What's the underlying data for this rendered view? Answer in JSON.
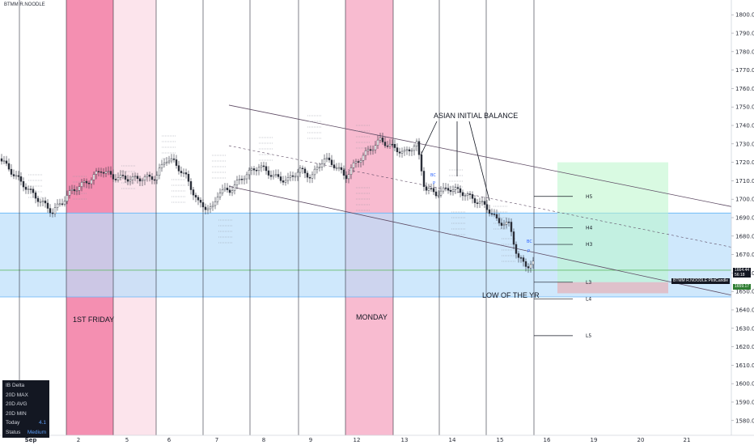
{
  "brand": "BTMM R.NOODLE",
  "chart_data": {
    "type": "candlestick",
    "y_axis": {
      "range": [
        1572,
        1808
      ],
      "ticks": [
        1800,
        1790,
        1780,
        1770,
        1760,
        1750,
        1740,
        1730,
        1720,
        1710,
        1700,
        1690,
        1680,
        1670,
        1660,
        1650,
        1640,
        1630,
        1620,
        1610,
        1600,
        1590,
        1580
      ]
    },
    "x_axis": {
      "labels": [
        {
          "label": "Sep",
          "bold": true
        },
        {
          "label": "2"
        },
        {
          "label": "5"
        },
        {
          "label": "6"
        },
        {
          "label": "7"
        },
        {
          "label": "8"
        },
        {
          "label": "9"
        },
        {
          "label": "12"
        },
        {
          "label": "13"
        },
        {
          "label": "14"
        },
        {
          "label": "15"
        },
        {
          "label": "16"
        },
        {
          "label": "19"
        },
        {
          "label": "20"
        },
        {
          "label": "21"
        }
      ]
    },
    "shaded_sessions": [
      {
        "name": "pink-dark-1",
        "color": "#f48fb1"
      },
      {
        "name": "pink-light-1",
        "color": "#fce4ec"
      },
      {
        "name": "pink-mid-2",
        "color": "#f8bbd0"
      }
    ],
    "blue_zone": {
      "top": 1692.5,
      "bottom": 1647,
      "color": "#bbdefb"
    },
    "green_line": {
      "value": 1661.5,
      "color": "#66bb6a"
    },
    "price_levels": [
      {
        "label": "H5",
        "value": 1701.5
      },
      {
        "label": "H4",
        "value": 1684.5
      },
      {
        "label": "H3",
        "value": 1675.5
      },
      {
        "label": "L3",
        "value": 1655
      },
      {
        "label": "L4",
        "value": 1646
      },
      {
        "label": "L5",
        "value": 1626
      }
    ],
    "annotations": [
      {
        "text": "ASIAN INITIAL BALANCE"
      },
      {
        "text": "LOW OF THE YR"
      },
      {
        "text": "1ST FRIDAY"
      },
      {
        "text": "MONDAY"
      }
    ],
    "price_tags": [
      {
        "text": "1664.44",
        "sub": "56:18",
        "bg": "#131722"
      },
      {
        "text": "BTMM R.NOODLE:PlotCandle",
        "bg": "#131722"
      },
      {
        "text": "1659.17",
        "bg": "#2e7d32"
      }
    ],
    "small_labels": [
      "BC",
      "P",
      "BC",
      "P"
    ]
  },
  "panel": [
    {
      "k": "IB Delta",
      "v": ""
    },
    {
      "k": "20D MAX",
      "v": ""
    },
    {
      "k": "20D AVG",
      "v": ""
    },
    {
      "k": "20D MIN",
      "v": ""
    },
    {
      "k": "Today",
      "v": "4.1"
    },
    {
      "k": "Status",
      "v": "Medium"
    }
  ]
}
